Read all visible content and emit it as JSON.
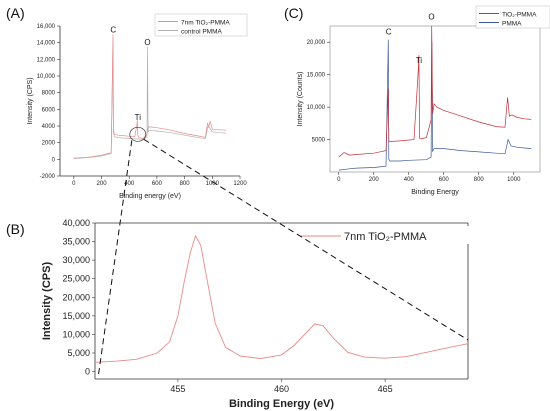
{
  "chart_data": [
    {
      "panel": "(A)",
      "type": "line",
      "xlabel": "Binding energy (eV)",
      "ylabel": "Intensity (CPS)",
      "xlim": [
        -100,
        1200
      ],
      "ylim": [
        -2000,
        16000
      ],
      "xticks": [
        0,
        200,
        400,
        600,
        800,
        1000,
        1200
      ],
      "yticks": [
        -2000,
        0,
        2000,
        4000,
        6000,
        8000,
        10000,
        12000,
        14000,
        16000
      ],
      "ytick_labels": [
        "-2000",
        "0",
        "2000",
        "4000",
        "6000",
        "8000",
        "10,000",
        "12,000",
        "14,000",
        "16,000"
      ],
      "peak_labels": [
        {
          "text": "C",
          "x": 285,
          "y": 15200
        },
        {
          "text": "O",
          "x": 532,
          "y": 13700
        },
        {
          "text": "Ti",
          "x": 462,
          "y": 4700
        }
      ],
      "legend": "top-right",
      "series": [
        {
          "name": "7nm TiO₂-PMMA",
          "color": "#e88a8a",
          "x": [
            0,
            100,
            200,
            270,
            283,
            286,
            292,
            320,
            380,
            440,
            455,
            458,
            462,
            470,
            500,
            528,
            531,
            535,
            545,
            600,
            700,
            800,
            900,
            950,
            965,
            975,
            985,
            1000,
            1050,
            1100
          ],
          "y": [
            150,
            250,
            500,
            800,
            15000,
            3600,
            3000,
            2900,
            2800,
            2700,
            4100,
            4700,
            2900,
            2600,
            2500,
            3000,
            3600,
            3700,
            3900,
            3800,
            3500,
            3100,
            2800,
            2650,
            4300,
            3900,
            4600,
            3600,
            3550,
            3500
          ]
        },
        {
          "name": "control PMMA",
          "color": "#b0b0b0",
          "x": [
            0,
            100,
            200,
            270,
            283,
            286,
            292,
            320,
            400,
            500,
            528,
            532,
            536,
            545,
            600,
            700,
            800,
            900,
            950,
            968,
            980,
            1000,
            1050,
            1100
          ],
          "y": [
            100,
            200,
            400,
            700,
            14400,
            3300,
            2700,
            2600,
            2500,
            2400,
            2700,
            13500,
            3300,
            3500,
            3400,
            3200,
            2900,
            2600,
            2500,
            3900,
            3800,
            3300,
            3200,
            3150
          ]
        }
      ]
    },
    {
      "panel": "(B)",
      "type": "line",
      "xlabel": "Binding Energy (eV)",
      "ylabel": "Intensity (CPS)",
      "xlim": [
        451,
        469
      ],
      "ylim": [
        -2000,
        40000
      ],
      "xticks": [
        455,
        460,
        465
      ],
      "yticks": [
        0,
        5000,
        10000,
        15000,
        20000,
        25000,
        30000,
        35000,
        40000
      ],
      "ytick_labels": [
        "0",
        "5,000",
        "10,000",
        "15,000",
        "20,000",
        "25,000",
        "30,000",
        "35,000",
        "40,000"
      ],
      "legend": "top-right",
      "series": [
        {
          "name": "7nm TiO₂-PMMA",
          "color": "#e88a8a",
          "x": [
            451,
            452,
            453,
            454,
            454.6,
            455,
            455.3,
            455.6,
            455.85,
            456.1,
            456.4,
            456.8,
            457.3,
            458,
            459,
            460,
            460.6,
            461.2,
            461.6,
            462,
            462.5,
            463.2,
            464,
            465,
            466,
            467,
            468,
            469
          ],
          "y": [
            2500,
            2800,
            3300,
            5000,
            8000,
            15000,
            24000,
            32000,
            36500,
            34000,
            25000,
            13000,
            6500,
            4200,
            3500,
            4500,
            7000,
            10500,
            12800,
            12400,
            9000,
            5200,
            3900,
            3600,
            4000,
            5200,
            6400,
            7500
          ]
        }
      ]
    },
    {
      "panel": "(C)",
      "type": "line",
      "xlabel": "Binding Energy",
      "ylabel": "Intensity (Counts)",
      "xlim": [
        -50,
        1150
      ],
      "ylim": [
        0,
        22500
      ],
      "xticks": [
        0,
        200,
        400,
        600,
        800,
        1000
      ],
      "yticks": [
        5000,
        10000,
        15000,
        20000
      ],
      "ytick_labels": [
        "5000",
        "10,000",
        "15,000",
        "20,000"
      ],
      "peak_labels": [
        {
          "text": "C",
          "x": 285,
          "y": 21200
        },
        {
          "text": "Ti",
          "x": 458,
          "y": 16800
        },
        {
          "text": "O",
          "x": 530,
          "y": 23500
        }
      ],
      "legend": "top-right",
      "series": [
        {
          "name": "TiO₂-PMMA",
          "color": "#c0303a",
          "x": [
            0,
            30,
            60,
            100,
            200,
            270,
            283,
            286,
            292,
            350,
            430,
            455,
            458,
            462,
            470,
            500,
            528,
            531,
            536,
            545,
            560,
            600,
            700,
            800,
            900,
            950,
            965,
            975,
            990,
            1020,
            1060,
            1100
          ],
          "y": [
            2300,
            3000,
            2600,
            2700,
            2900,
            3300,
            12800,
            4800,
            4700,
            4800,
            5000,
            16000,
            18000,
            5200,
            5100,
            5300,
            8000,
            22500,
            9000,
            10500,
            10000,
            9500,
            8600,
            7700,
            7000,
            6900,
            11500,
            8600,
            8800,
            8400,
            8200,
            8100
          ]
        },
        {
          "name": "PMMA",
          "color": "#3c5a9a",
          "x": [
            0,
            60,
            100,
            200,
            270,
            283,
            286,
            292,
            350,
            400,
            500,
            528,
            532,
            536,
            545,
            600,
            700,
            800,
            900,
            950,
            968,
            985,
            1020,
            1060,
            1100
          ],
          "y": [
            300,
            500,
            600,
            700,
            900,
            20400,
            2000,
            1700,
            1700,
            1800,
            1900,
            2300,
            20000,
            3200,
            3600,
            3600,
            3300,
            3100,
            2900,
            2800,
            5000,
            4000,
            3800,
            3700,
            3600
          ]
        }
      ]
    }
  ]
}
